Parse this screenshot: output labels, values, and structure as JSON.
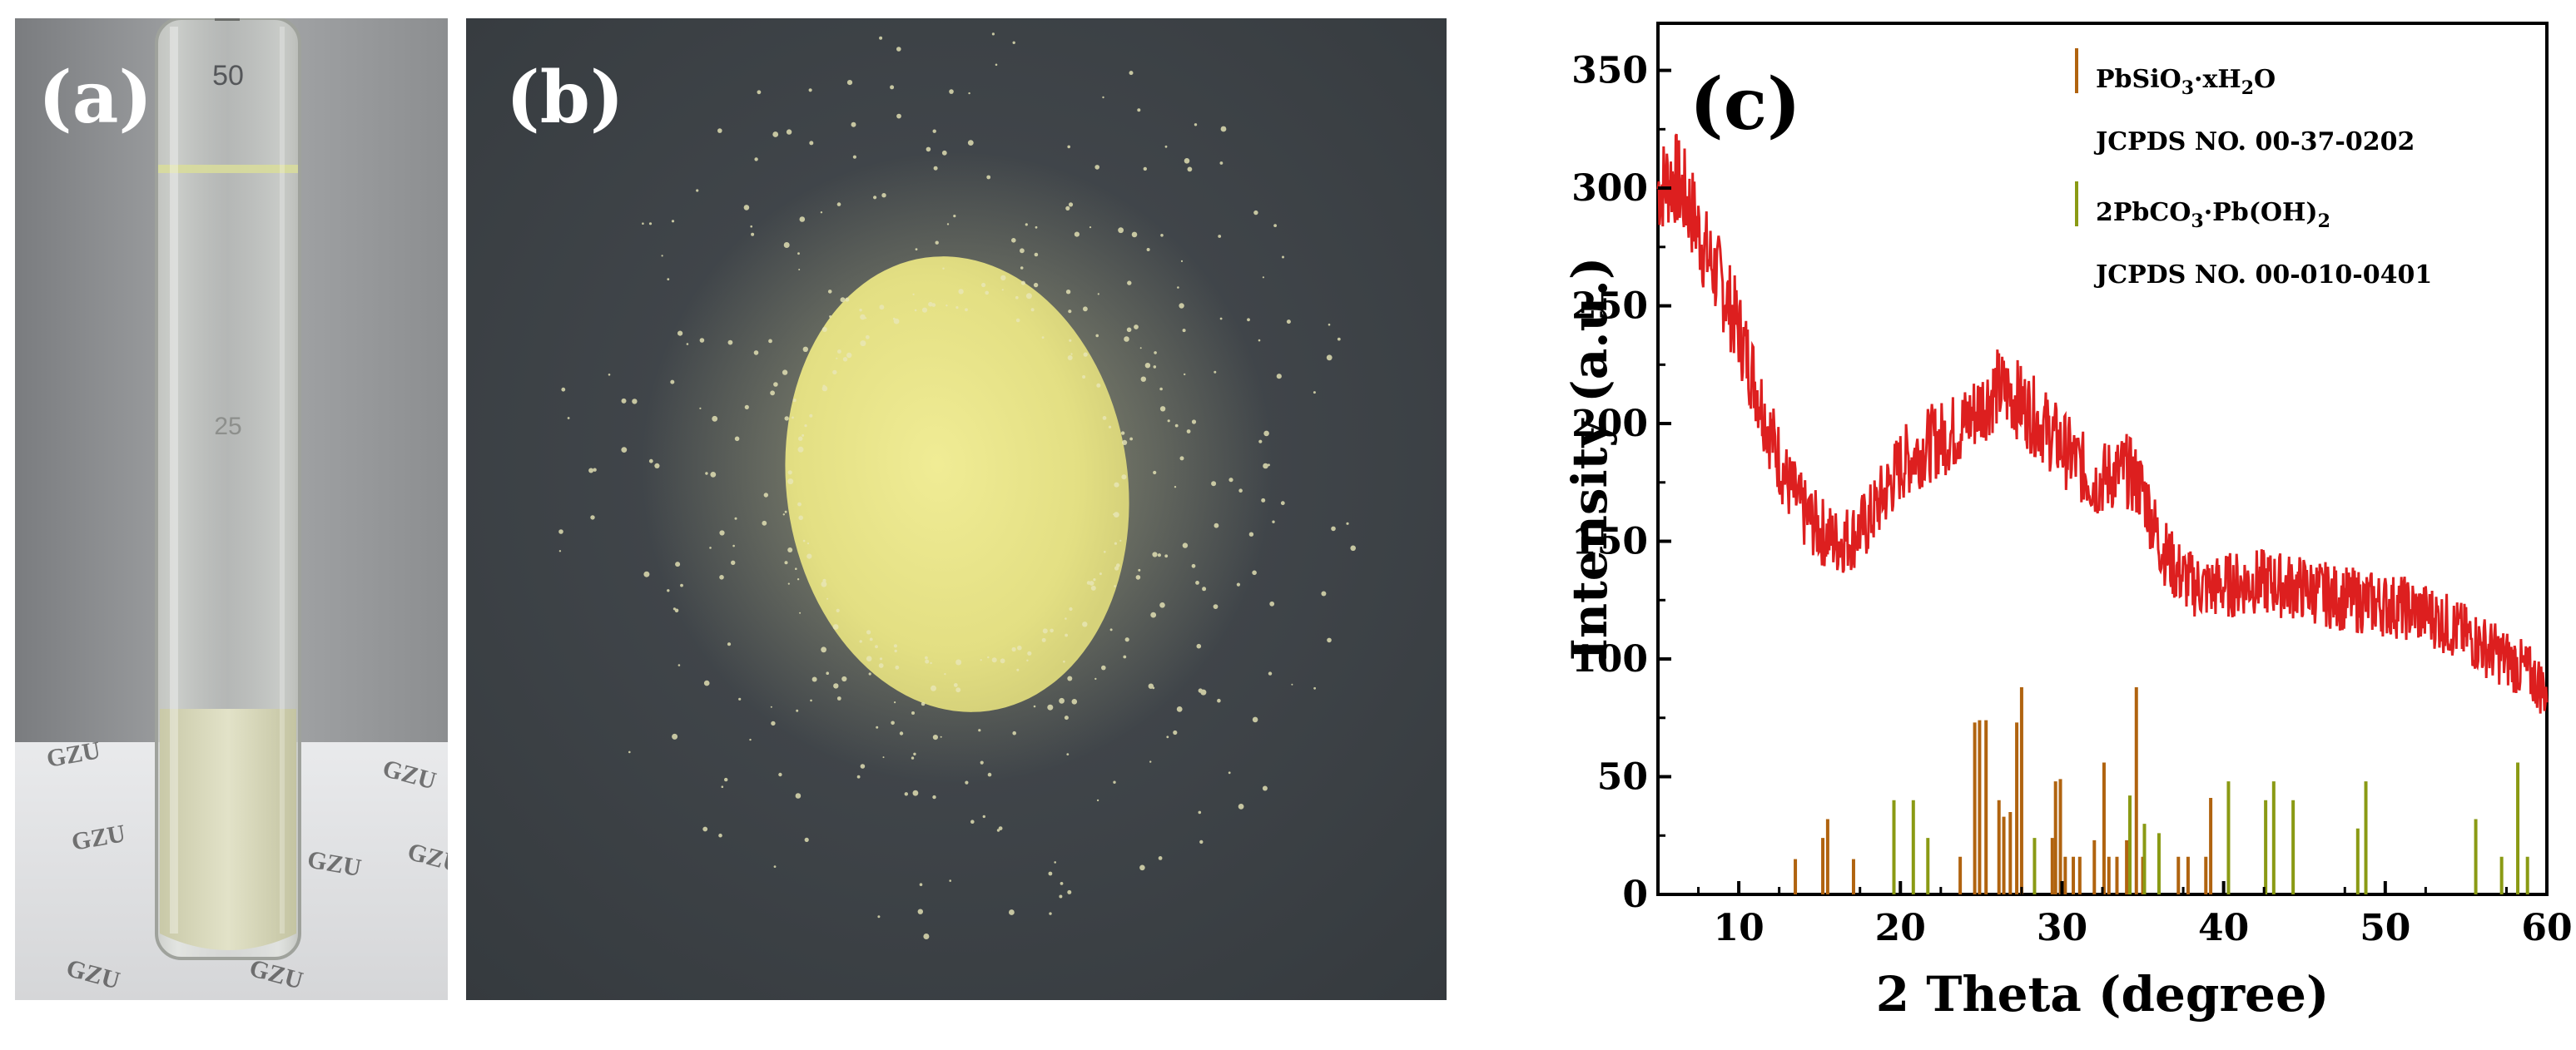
{
  "panels": {
    "a": {
      "label": "(a)",
      "tube_scale_top": "50",
      "tube_scale_mid": "25",
      "paper_marks": [
        "GZU",
        "GZU",
        "GZU",
        "GZU",
        "GZU",
        "GZU",
        "GZU"
      ]
    },
    "b": {
      "label": "(b)"
    },
    "c": {
      "label": "(c)"
    }
  },
  "colors": {
    "pattern": "#dd1f1f",
    "pbsio3": "#b0630f",
    "pbcarbonate": "#8a9a14",
    "powder": "#e8e58a",
    "background_b": "#3f4448"
  },
  "chart_data": {
    "type": "line",
    "xlabel": "2 Theta (degree)",
    "ylabel": "Intensity (a.u.)",
    "xlim": [
      5,
      60
    ],
    "ylim": [
      0,
      370
    ],
    "xticks": [
      10,
      20,
      30,
      40,
      50,
      60
    ],
    "yticks": [
      0,
      50,
      100,
      150,
      200,
      250,
      300,
      350
    ],
    "series": [
      {
        "name": "",
        "x": [
          5,
          6,
          7,
          8,
          9,
          10,
          11,
          12,
          13,
          14,
          15,
          16,
          17,
          18,
          19,
          20,
          21,
          22,
          23,
          24,
          25,
          26,
          27,
          28,
          29,
          30,
          31,
          32,
          33,
          34,
          35,
          36,
          37,
          38,
          39,
          40,
          41,
          42,
          43,
          44,
          45,
          46,
          47,
          48,
          49,
          50,
          51,
          52,
          53,
          54,
          55,
          56,
          57,
          58,
          59,
          60
        ],
        "y": [
          300,
          305,
          292,
          272,
          258,
          240,
          218,
          195,
          175,
          162,
          155,
          150,
          152,
          158,
          170,
          182,
          188,
          192,
          195,
          200,
          208,
          215,
          212,
          205,
          198,
          190,
          183,
          175,
          178,
          180,
          172,
          150,
          138,
          132,
          130,
          131,
          132,
          133,
          132,
          131,
          130,
          128,
          126,
          125,
          124,
          123,
          122,
          120,
          118,
          114,
          110,
          106,
          102,
          98,
          93,
          86
        ],
        "color": "#dd1f1f"
      }
    ],
    "reference_patterns": [
      {
        "name": "PbSiO3·xH2O",
        "card": "JCPDS NO. 00-37-0202",
        "color": "#b0630f",
        "x": [
          13.5,
          15.2,
          15.5,
          17.1,
          23.7,
          24.6,
          24.9,
          25.3,
          26.1,
          26.4,
          26.8,
          27.2,
          27.5,
          29.4,
          29.6,
          29.9,
          30.2,
          30.7,
          31.1,
          32.0,
          32.6,
          32.9,
          33.4,
          34.0,
          34.6,
          35.0,
          37.2,
          37.8,
          38.9,
          39.2
        ],
        "intensity": [
          15,
          24,
          32,
          15,
          16,
          73,
          74,
          74,
          40,
          33,
          35,
          73,
          88,
          24,
          48,
          49,
          16,
          16,
          16,
          23,
          56,
          16,
          16,
          23,
          88,
          16,
          16,
          16,
          16,
          41
        ]
      },
      {
        "name": "2PbCO3·Pb(OH)2",
        "card": "JCPDS NO. 00-010-0401",
        "color": "#8a9a14",
        "x": [
          19.6,
          20.8,
          21.7,
          28.3,
          34.2,
          35.1,
          36.0,
          40.3,
          42.6,
          43.1,
          44.3,
          48.3,
          48.8,
          55.6,
          57.2,
          58.2,
          58.8
        ],
        "intensity": [
          40,
          40,
          24,
          24,
          42,
          30,
          26,
          48,
          40,
          48,
          40,
          28,
          48,
          32,
          16,
          56,
          16
        ]
      }
    ],
    "legend_position": "top-right"
  }
}
